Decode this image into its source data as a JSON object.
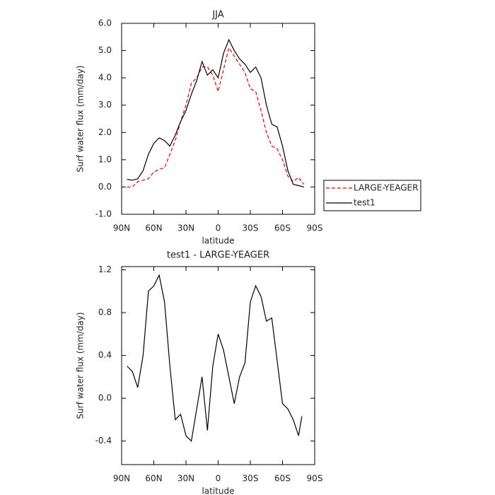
{
  "chart_data": [
    {
      "type": "line",
      "title": "JJA",
      "xlabel": "latitude",
      "ylabel": "Surf water flux (mm/day)",
      "x": [
        85,
        80,
        75,
        70,
        65,
        60,
        55,
        50,
        45,
        40,
        35,
        30,
        25,
        20,
        15,
        10,
        5,
        0,
        -5,
        -10,
        -15,
        -20,
        -25,
        -30,
        -35,
        -40,
        -45,
        -50,
        -55,
        -60,
        -65,
        -70,
        -75,
        -80
      ],
      "series": [
        {
          "name": "LARGE-YEAGER",
          "color": "#e00000",
          "linestyle": "dashed",
          "values": [
            0.0,
            0.0,
            0.2,
            0.25,
            0.3,
            0.55,
            0.65,
            0.7,
            1.2,
            1.7,
            2.4,
            3.0,
            3.8,
            4.0,
            4.4,
            4.4,
            4.1,
            3.5,
            4.3,
            5.1,
            4.8,
            4.5,
            4.2,
            3.6,
            3.5,
            2.8,
            2.0,
            1.5,
            1.4,
            1.0,
            0.4,
            0.2,
            0.35,
            0.1
          ]
        },
        {
          "name": "test1",
          "color": "#000000",
          "linestyle": "solid",
          "values": [
            0.28,
            0.25,
            0.3,
            0.6,
            1.2,
            1.6,
            1.8,
            1.7,
            1.5,
            1.9,
            2.4,
            2.8,
            3.4,
            3.9,
            4.6,
            4.1,
            4.3,
            4.0,
            4.9,
            5.4,
            5.0,
            4.7,
            4.5,
            4.2,
            4.4,
            4.0,
            3.0,
            2.3,
            2.2,
            1.5,
            0.6,
            0.1,
            0.05,
            0.0
          ]
        }
      ],
      "xlim": [
        90,
        -90
      ],
      "xticks": [
        {
          "value": 90,
          "label": "90N"
        },
        {
          "value": 60,
          "label": "60N"
        },
        {
          "value": 30,
          "label": "30N"
        },
        0,
        {
          "value": -30,
          "label": "30S"
        },
        {
          "value": -60,
          "label": "60S"
        },
        {
          "value": -90,
          "label": "90S"
        }
      ],
      "ylim": [
        -1,
        6
      ],
      "yticks": [
        {
          "value": 6,
          "label": "6.0"
        },
        {
          "value": 5,
          "label": "5.0"
        },
        {
          "value": 4,
          "label": "4.0"
        },
        {
          "value": 3,
          "label": "3.0"
        },
        {
          "value": 2,
          "label": "2.0"
        },
        {
          "value": 1,
          "label": "1.0"
        },
        {
          "value": 0,
          "label": "0.0"
        },
        {
          "value": -1,
          "label": "-1.0"
        }
      ],
      "legend": "right"
    },
    {
      "type": "line",
      "title": "test1 - LARGE-YEAGER",
      "xlabel": "latitude",
      "ylabel": "Surf water flux (mm/day)",
      "x": [
        85,
        80,
        75,
        70,
        65,
        60,
        55,
        50,
        45,
        40,
        35,
        30,
        25,
        20,
        15,
        10,
        5,
        0,
        -5,
        -10,
        -15,
        -20,
        -25,
        -30,
        -35,
        -40,
        -45,
        -50,
        -55,
        -60,
        -65,
        -70,
        -75,
        -78
      ],
      "series": [
        {
          "color": "#000000",
          "linestyle": "solid",
          "values": [
            0.3,
            0.25,
            0.1,
            0.4,
            1.0,
            1.05,
            1.15,
            0.9,
            0.3,
            -0.2,
            -0.15,
            -0.35,
            -0.4,
            -0.1,
            0.2,
            -0.3,
            0.3,
            0.6,
            0.45,
            0.2,
            -0.05,
            0.2,
            0.33,
            0.9,
            1.05,
            0.95,
            0.72,
            0.75,
            0.35,
            -0.05,
            -0.1,
            -0.2,
            -0.35,
            -0.17
          ]
        }
      ],
      "xlim": [
        90,
        -90
      ],
      "xticks": [
        {
          "value": 90,
          "label": "90N"
        },
        {
          "value": 60,
          "label": "60N"
        },
        {
          "value": 30,
          "label": "30N"
        },
        0,
        {
          "value": -30,
          "label": "30S"
        },
        {
          "value": -60,
          "label": "60S"
        },
        {
          "value": -90,
          "label": "90S"
        }
      ],
      "ylim": [
        -0.62,
        1.23
      ],
      "yticks": [
        1.2,
        0.8,
        0.4,
        {
          "value": 0,
          "label": "0.0"
        },
        -0.4
      ]
    }
  ]
}
